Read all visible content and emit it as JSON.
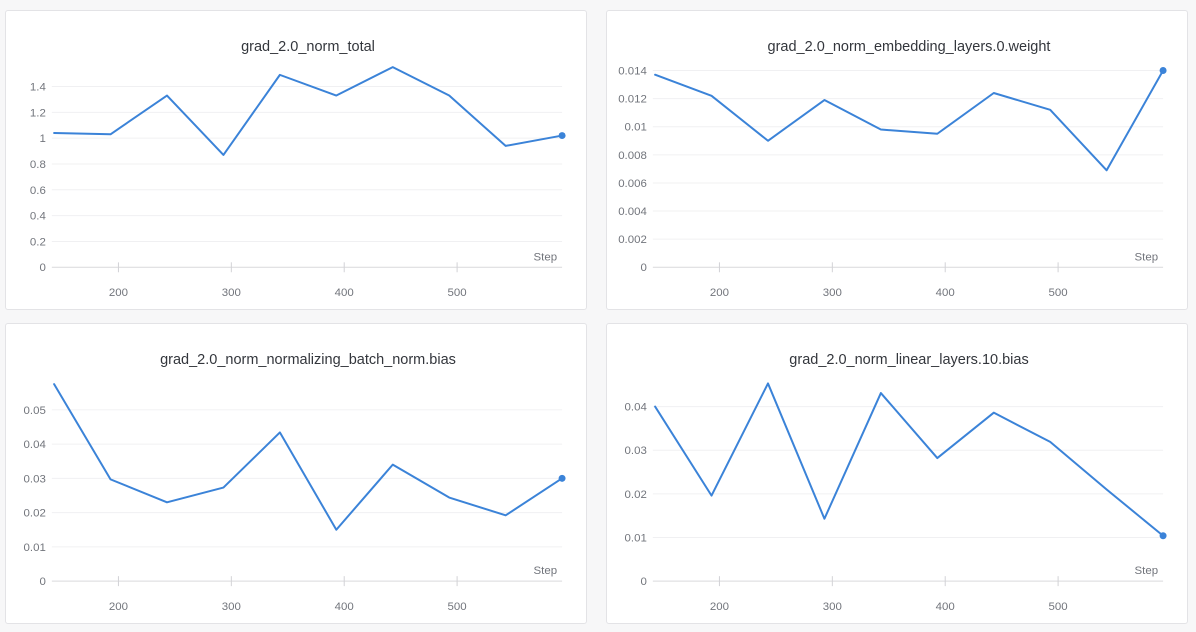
{
  "page": {
    "background_color": "#f7f7f8",
    "panel_background": "#ffffff",
    "panel_border_color": "#e3e3e6",
    "line_color": "#3b83d8",
    "grid_color": "#f0f0f2",
    "axis_color": "#d9d9dc",
    "tick_mark_color": "#d2d2d6",
    "label_color": "#72757c",
    "title_color": "#33363c"
  },
  "chart_data": [
    {
      "type": "line",
      "title": "grad_2.0_norm_total",
      "xlabel": "Step",
      "x": [
        143,
        193,
        243,
        293,
        343,
        393,
        443,
        493,
        543,
        593
      ],
      "values": [
        1.04,
        1.03,
        1.33,
        0.87,
        1.49,
        1.33,
        1.55,
        1.33,
        0.94,
        1.02
      ],
      "xlim": [
        141,
        593
      ],
      "ylim": [
        0,
        1.6
      ],
      "xticks": [
        200,
        300,
        400,
        500
      ],
      "yticks": [
        0,
        0.2,
        0.4,
        0.6,
        0.8,
        1,
        1.2,
        1.4
      ],
      "ytick_labels": [
        "0",
        "0.2",
        "0.4",
        "0.6",
        "0.8",
        "1",
        "1.2",
        "1.4"
      ],
      "grid": "horizontal",
      "legend": "none",
      "last_point_marker": true
    },
    {
      "type": "line",
      "title": "grad_2.0_norm_embedding_layers.0.weight",
      "xlabel": "Step",
      "x": [
        143,
        193,
        243,
        293,
        343,
        393,
        443,
        493,
        543,
        593
      ],
      "values": [
        0.0137,
        0.0122,
        0.009,
        0.0119,
        0.0098,
        0.0095,
        0.0124,
        0.0112,
        0.0069,
        0.014
      ],
      "xlim": [
        141,
        593
      ],
      "ylim": [
        0,
        0.0147
      ],
      "xticks": [
        200,
        300,
        400,
        500
      ],
      "yticks": [
        0,
        0.002,
        0.004,
        0.006,
        0.008,
        0.01,
        0.012,
        0.014
      ],
      "ytick_labels": [
        "0",
        "0.002",
        "0.004",
        "0.006",
        "0.008",
        "0.01",
        "0.012",
        "0.014"
      ],
      "grid": "horizontal",
      "legend": "none",
      "last_point_marker": true
    },
    {
      "type": "line",
      "title": "grad_2.0_norm_normalizing_batch_norm.bias",
      "xlabel": "Step",
      "x": [
        143,
        193,
        243,
        293,
        343,
        393,
        443,
        493,
        543,
        593
      ],
      "values": [
        0.0575,
        0.0297,
        0.023,
        0.0273,
        0.0434,
        0.015,
        0.034,
        0.0244,
        0.0192,
        0.03
      ],
      "xlim": [
        141,
        593
      ],
      "ylim": [
        0,
        0.0605
      ],
      "xticks": [
        200,
        300,
        400,
        500
      ],
      "yticks": [
        0,
        0.01,
        0.02,
        0.03,
        0.04,
        0.05
      ],
      "ytick_labels": [
        "0",
        "0.01",
        "0.02",
        "0.03",
        "0.04",
        "0.05"
      ],
      "grid": "horizontal",
      "legend": "none",
      "last_point_marker": true
    },
    {
      "type": "line",
      "title": "grad_2.0_norm_linear_layers.10.bias",
      "xlabel": "Step",
      "x": [
        143,
        193,
        243,
        293,
        343,
        393,
        443,
        493,
        543,
        593
      ],
      "values": [
        0.04,
        0.0196,
        0.0453,
        0.0143,
        0.0431,
        0.0282,
        0.0386,
        0.0319,
        0.021,
        0.0104
      ],
      "xlim": [
        141,
        593
      ],
      "ylim": [
        0,
        0.0475
      ],
      "xticks": [
        200,
        300,
        400,
        500
      ],
      "yticks": [
        0,
        0.01,
        0.02,
        0.03,
        0.04
      ],
      "ytick_labels": [
        "0",
        "0.01",
        "0.02",
        "0.03",
        "0.04"
      ],
      "grid": "horizontal",
      "legend": "none",
      "last_point_marker": true
    }
  ]
}
